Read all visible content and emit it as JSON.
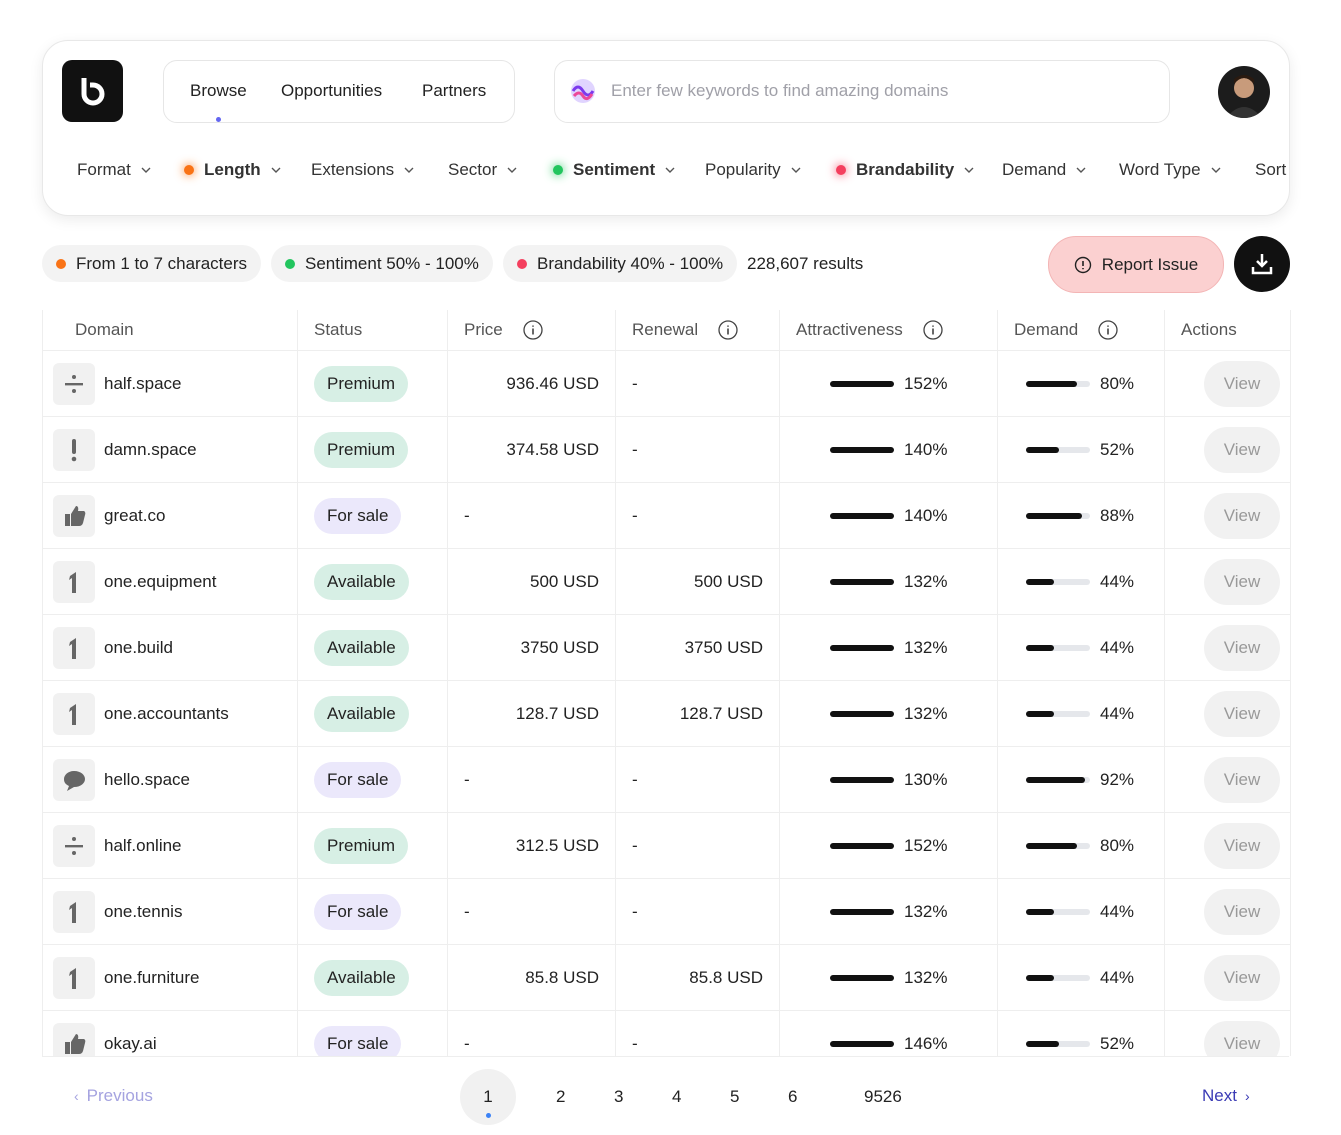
{
  "nav": {
    "tabs": [
      "Browse",
      "Opportunities",
      "Partners"
    ],
    "search_placeholder": "Enter few keywords to find amazing domains"
  },
  "filters": [
    {
      "label": "Format"
    },
    {
      "label": "Length",
      "dot": "#f97316"
    },
    {
      "label": "Extensions"
    },
    {
      "label": "Sector"
    },
    {
      "label": "Sentiment",
      "dot": "#22c55e"
    },
    {
      "label": "Popularity"
    },
    {
      "label": "Brandability",
      "dot": "#f43f5e"
    },
    {
      "label": "Demand"
    },
    {
      "label": "Word Type"
    },
    {
      "label": "Sort"
    }
  ],
  "chips": [
    {
      "text": "From 1 to 7 characters",
      "color": "#f97316"
    },
    {
      "text": "Sentiment 50% - 100%",
      "color": "#22c55e"
    },
    {
      "text": "Brandability 40% - 100%",
      "color": "#f43f5e"
    }
  ],
  "results": "228,607 results",
  "report_button": "Report Issue",
  "table": {
    "columns": [
      "Domain",
      "Status",
      "Price",
      "Renewal",
      "Attractiveness",
      "Demand",
      "Actions"
    ],
    "rows": [
      {
        "icon": "divide",
        "domain": "half.space",
        "status": "Premium",
        "status_color": "#d7efe5",
        "price": "936.46 USD",
        "renewal": "-",
        "attractiveness": {
          "value": 152,
          "label": "152%"
        },
        "demand": {
          "value": 80,
          "label": "80%"
        },
        "action": "View"
      },
      {
        "icon": "exclaim",
        "domain": "damn.space",
        "status": "Premium",
        "status_color": "#d7efe5",
        "price": "374.58 USD",
        "renewal": "-",
        "attractiveness": {
          "value": 140,
          "label": "140%"
        },
        "demand": {
          "value": 52,
          "label": "52%"
        },
        "action": "View"
      },
      {
        "icon": "thumb",
        "domain": "great.co",
        "status": "For sale",
        "status_color": "#ebe8fb",
        "price": "-",
        "renewal": "-",
        "attractiveness": {
          "value": 140,
          "label": "140%"
        },
        "demand": {
          "value": 88,
          "label": "88%"
        },
        "action": "View"
      },
      {
        "icon": "one",
        "domain": "one.equipment",
        "status": "Available",
        "status_color": "#d7efe5",
        "price": "500 USD",
        "renewal": "500 USD",
        "attractiveness": {
          "value": 132,
          "label": "132%"
        },
        "demand": {
          "value": 44,
          "label": "44%"
        },
        "action": "View"
      },
      {
        "icon": "one",
        "domain": "one.build",
        "status": "Available",
        "status_color": "#d7efe5",
        "price": "3750 USD",
        "renewal": "3750 USD",
        "attractiveness": {
          "value": 132,
          "label": "132%"
        },
        "demand": {
          "value": 44,
          "label": "44%"
        },
        "action": "View"
      },
      {
        "icon": "one",
        "domain": "one.accountants",
        "status": "Available",
        "status_color": "#d7efe5",
        "price": "128.7 USD",
        "renewal": "128.7 USD",
        "attractiveness": {
          "value": 132,
          "label": "132%"
        },
        "demand": {
          "value": 44,
          "label": "44%"
        },
        "action": "View"
      },
      {
        "icon": "chat",
        "domain": "hello.space",
        "status": "For sale",
        "status_color": "#ebe8fb",
        "price": "-",
        "renewal": "-",
        "attractiveness": {
          "value": 130,
          "label": "130%"
        },
        "demand": {
          "value": 92,
          "label": "92%"
        },
        "action": "View"
      },
      {
        "icon": "divide",
        "domain": "half.online",
        "status": "Premium",
        "status_color": "#d7efe5",
        "price": "312.5 USD",
        "renewal": "-",
        "attractiveness": {
          "value": 152,
          "label": "152%"
        },
        "demand": {
          "value": 80,
          "label": "80%"
        },
        "action": "View"
      },
      {
        "icon": "one",
        "domain": "one.tennis",
        "status": "For sale",
        "status_color": "#ebe8fb",
        "price": "-",
        "renewal": "-",
        "attractiveness": {
          "value": 132,
          "label": "132%"
        },
        "demand": {
          "value": 44,
          "label": "44%"
        },
        "action": "View"
      },
      {
        "icon": "one",
        "domain": "one.furniture",
        "status": "Available",
        "status_color": "#d7efe5",
        "price": "85.8 USD",
        "renewal": "85.8 USD",
        "attractiveness": {
          "value": 132,
          "label": "132%"
        },
        "demand": {
          "value": 44,
          "label": "44%"
        },
        "action": "View"
      },
      {
        "icon": "thumb",
        "domain": "okay.ai",
        "status": "For sale",
        "status_color": "#ebe8fb",
        "price": "-",
        "renewal": "-",
        "attractiveness": {
          "value": 146,
          "label": "146%"
        },
        "demand": {
          "value": 52,
          "label": "52%"
        },
        "action": "View"
      }
    ]
  },
  "pagination": {
    "previous": "Previous",
    "pages": [
      "1",
      "2",
      "3",
      "4",
      "5",
      "6",
      "9526"
    ],
    "next": "Next"
  }
}
